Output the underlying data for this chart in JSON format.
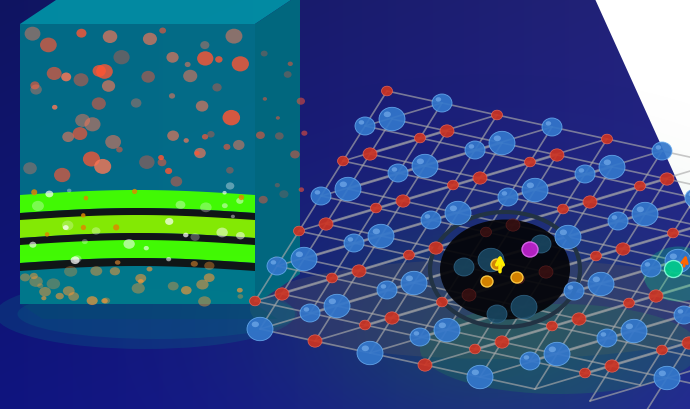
{
  "fig_width": 6.9,
  "fig_height": 4.1,
  "dpi": 100,
  "bg_blue_dark": [
    18,
    28,
    100
  ],
  "bg_blue_mid": [
    25,
    45,
    130
  ],
  "bg_blue_light": [
    40,
    60,
    160
  ],
  "white_right": true,
  "led_teal": "#008899",
  "led_teal_dark": "#006677",
  "led_teal_mid": "#007788",
  "led_top_face": "#009aaa",
  "led_green1": "#44ff00",
  "led_green2": "#88ee00",
  "led_black_stripe": "#111111",
  "led_dot_red": "#ff5533",
  "led_dot_orange": "#ff9933",
  "led_dot_white": "#ffffff",
  "crystal_blue": "#3377cc",
  "crystal_blue2": "#4499ee",
  "crystal_red": "#cc3322",
  "crystal_red2": "#ee5544",
  "bond_color": "#aaaaaa",
  "defect_dark": "#050510",
  "defect_orange": "#dd8800",
  "defect_yellow": "#ffee00",
  "defect_purple": "#bb22cc",
  "glow_green": "#00ff88",
  "glow_teal": "#00ccaa",
  "bottom_green_glow": "#33aa44",
  "shadow_teal": "#009988"
}
